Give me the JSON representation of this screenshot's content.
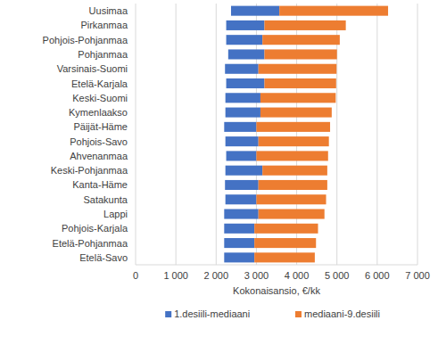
{
  "chart_data": {
    "type": "bar",
    "orientation": "horizontal",
    "stacked": true,
    "grid": true,
    "legend": "bottom",
    "xlabel": "Kokonaisansio, €/kk",
    "categories": [
      "Uusimaa",
      "Pirkanmaa",
      "Pohjois-Pohjanmaa",
      "Pohjanmaa",
      "Varsinais-Suomi",
      "Etelä-Karjala",
      "Keski-Suomi",
      "Kymenlaakso",
      "Päijät-Häme",
      "Pohjois-Savo",
      "Ahvenanmaa",
      "Keski-Pohjanmaa",
      "Kanta-Häme",
      "Satakunta",
      "Lappi",
      "Pohjois-Karjala",
      "Etelä-Pohjanmaa",
      "Etelä-Savo"
    ],
    "series": [
      {
        "color": "none",
        "values": [
          2370,
          2250,
          2250,
          2300,
          2220,
          2250,
          2230,
          2230,
          2200,
          2230,
          2250,
          2230,
          2220,
          2230,
          2200,
          2200,
          2200,
          2200
        ]
      },
      {
        "name": "1.desiili-mediaani",
        "color": "#4472c4",
        "values": [
          1200,
          950,
          900,
          900,
          830,
          950,
          870,
          870,
          800,
          820,
          750,
          920,
          830,
          770,
          850,
          750,
          750,
          750
        ]
      },
      {
        "name": "mediaani-9.desiili",
        "color": "#ed7d31",
        "values": [
          2700,
          2020,
          1920,
          1800,
          1940,
          1780,
          1870,
          1770,
          1830,
          1750,
          1780,
          1610,
          1710,
          1730,
          1640,
          1580,
          1530,
          1500
        ]
      }
    ],
    "xlim": [
      0,
      7000
    ],
    "xticks": [
      0,
      {
        "value": 1000,
        "label": "1 000"
      },
      {
        "value": 2000,
        "label": "2 000"
      },
      {
        "value": 3000,
        "label": "3 000"
      },
      {
        "value": 4000,
        "label": "4 000"
      },
      {
        "value": 5000,
        "label": "5 000"
      },
      {
        "value": 6000,
        "label": "6 000"
      },
      {
        "value": 7000,
        "label": "7 000"
      }
    ]
  }
}
